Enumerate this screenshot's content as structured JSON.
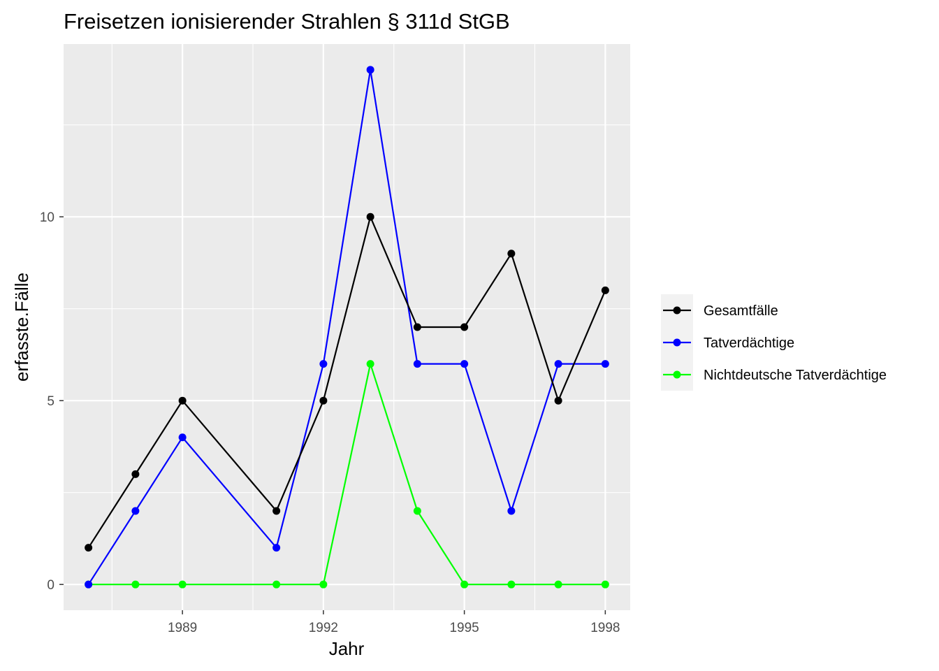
{
  "chart_data": {
    "type": "line",
    "title": "Freisetzen ionisierender Strahlen § 311d StGB",
    "xlabel": "Jahr",
    "ylabel": "erfasste.Fälle",
    "x": [
      1987,
      1988,
      1989,
      1991,
      1992,
      1993,
      1994,
      1995,
      1996,
      1997,
      1998
    ],
    "xlim": [
      1986.47,
      1998.53
    ],
    "ylim": [
      -0.7,
      14.7
    ],
    "xticks": [
      1989,
      1992,
      1995,
      1998
    ],
    "xtick_labels": [
      "1989",
      "1992",
      "1995",
      "1998"
    ],
    "xminor": [
      1987.5,
      1990.5,
      1993.5,
      1996.5
    ],
    "yticks": [
      0,
      5,
      10
    ],
    "ytick_labels": [
      "0",
      "5",
      "10"
    ],
    "yminor": [
      2.5,
      7.5,
      12.5
    ],
    "grid": true,
    "legend_position": "right",
    "series": [
      {
        "name": "Gesamtfälle",
        "color": "#000000",
        "values": [
          1,
          3,
          5,
          2,
          5,
          10,
          7,
          7,
          9,
          5,
          8
        ]
      },
      {
        "name": "Tatverdächtige",
        "color": "#0000ff",
        "values": [
          0,
          2,
          4,
          1,
          6,
          14,
          6,
          6,
          2,
          6,
          6
        ]
      },
      {
        "name": "Nichtdeutsche Tatverdächtige",
        "color": "#00ff00",
        "values": [
          0,
          0,
          0,
          0,
          0,
          6,
          2,
          0,
          0,
          0,
          0
        ]
      }
    ]
  }
}
